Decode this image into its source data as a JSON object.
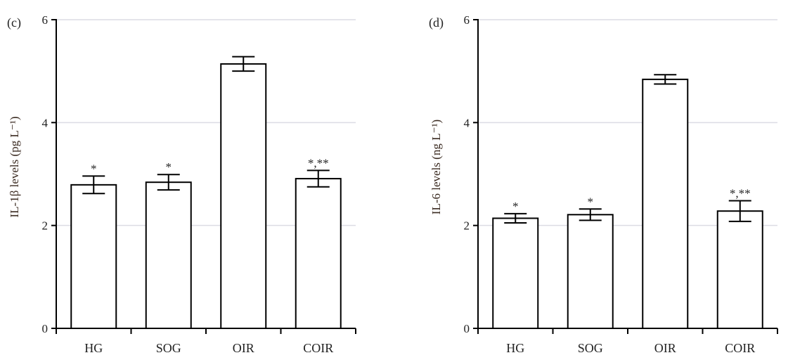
{
  "chart_data": [
    {
      "type": "bar",
      "panel_label": "(c)",
      "ylabel": "IL-1β levels (pg L⁻¹)",
      "categories": [
        "HG",
        "SOG",
        "OIR",
        "COIR"
      ],
      "values": [
        2.79,
        2.84,
        5.14,
        2.91
      ],
      "errors": [
        0.17,
        0.15,
        0.14,
        0.16
      ],
      "annotations": [
        "*",
        "*",
        "",
        "*,**"
      ],
      "ylim": [
        0,
        6
      ],
      "yticks": [
        "0",
        "2",
        "4",
        "6"
      ],
      "grid": true
    },
    {
      "type": "bar",
      "panel_label": "(d)",
      "ylabel": "IL-6 levels (ng L⁻¹)",
      "categories": [
        "HG",
        "SOG",
        "OIR",
        "COIR"
      ],
      "values": [
        2.14,
        2.21,
        4.84,
        2.28
      ],
      "errors": [
        0.09,
        0.11,
        0.09,
        0.2
      ],
      "annotations": [
        "*",
        "*",
        "",
        "*,**"
      ],
      "ylim": [
        0,
        6
      ],
      "yticks": [
        "0",
        "2",
        "4",
        "6"
      ],
      "grid": true
    }
  ]
}
